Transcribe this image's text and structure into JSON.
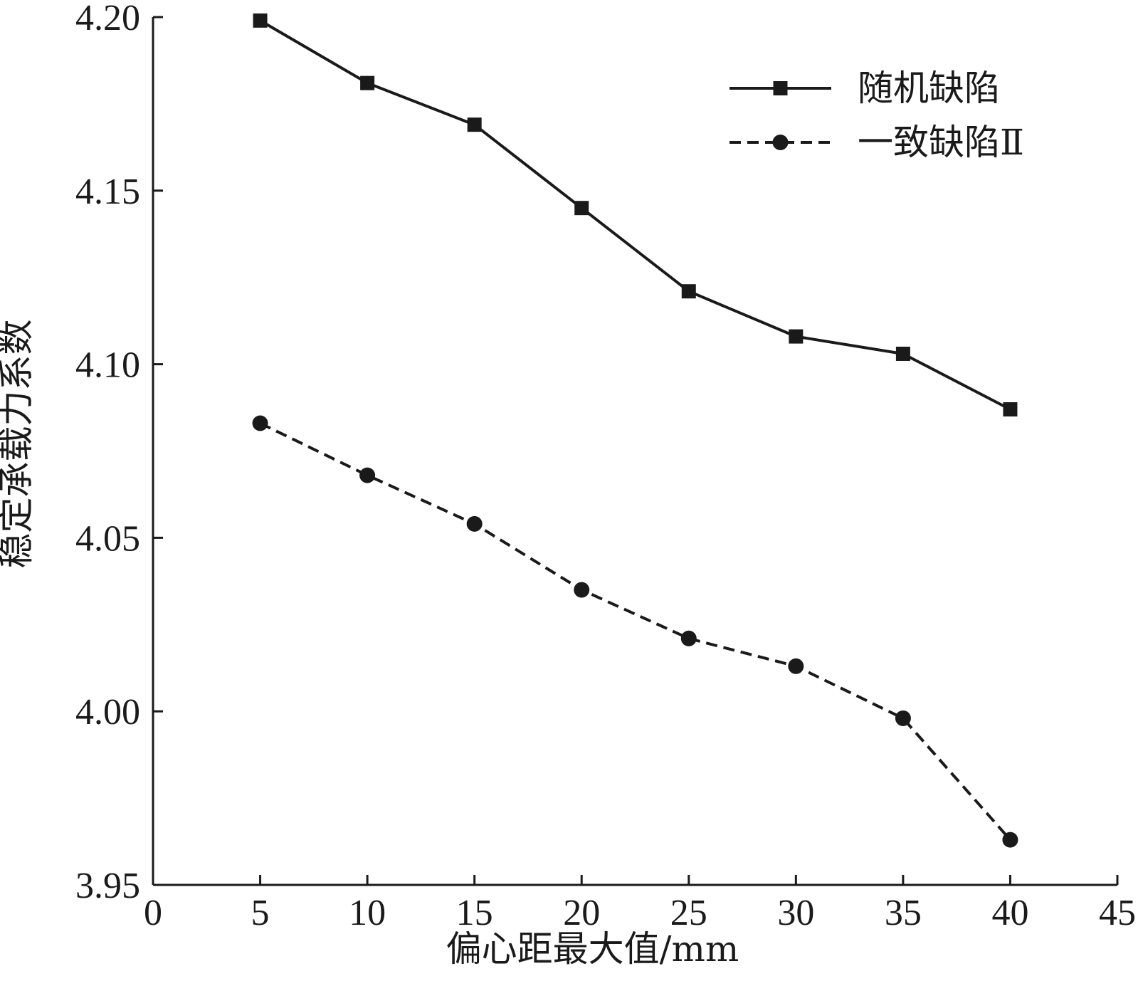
{
  "chart_data": {
    "type": "line",
    "xlabel": "偏心距最大值/mm",
    "ylabel": "稳定承载力系数",
    "xlim": [
      0,
      45
    ],
    "ylim": [
      3.95,
      4.2
    ],
    "xticks": [
      0,
      5,
      10,
      15,
      20,
      25,
      30,
      35,
      40,
      45
    ],
    "yticks": [
      3.95,
      4.0,
      4.05,
      4.1,
      4.15,
      4.2
    ],
    "ytick_labels": [
      "3.95",
      "4.00",
      "4.05",
      "4.10",
      "4.15",
      "4.20"
    ],
    "grid": false,
    "legend_position": "top-right",
    "x": [
      5,
      10,
      15,
      20,
      25,
      30,
      35,
      40
    ],
    "series": [
      {
        "name": "随机缺陷",
        "line_style": "solid",
        "marker": "square",
        "color": "#1a1a1a",
        "values": [
          4.199,
          4.181,
          4.169,
          4.145,
          4.121,
          4.108,
          4.103,
          4.087
        ]
      },
      {
        "name": "一致缺陷Ⅱ",
        "line_style": "dashed",
        "marker": "circle",
        "color": "#1a1a1a",
        "values": [
          4.083,
          4.068,
          4.054,
          4.035,
          4.021,
          4.013,
          3.998,
          3.963
        ]
      }
    ]
  }
}
